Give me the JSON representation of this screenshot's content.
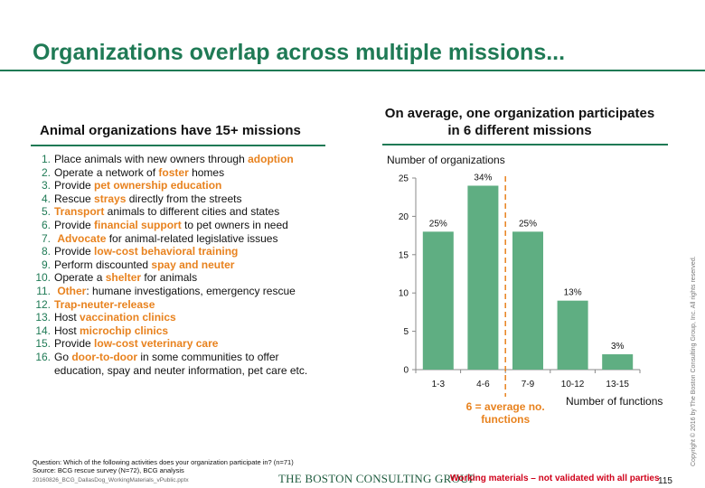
{
  "title": "Organizations overlap across multiple missions...",
  "left_heading": "Animal organizations have 15+ missions",
  "missions": [
    {
      "num": "1.",
      "pre": "Place animals with new owners through ",
      "em": "adoption",
      "post": ""
    },
    {
      "num": "2.",
      "pre": "Operate a network of ",
      "em": "foster",
      "post": " homes"
    },
    {
      "num": "3.",
      "pre": "Provide ",
      "em": "pet ownership education",
      "post": ""
    },
    {
      "num": "4.",
      "pre": "Rescue ",
      "em": "strays",
      "post": " directly from the streets"
    },
    {
      "num": "5.",
      "pre": "",
      "em": "Transport",
      "post": " animals to different cities and states"
    },
    {
      "num": "6.",
      "pre": "Provide ",
      "em": "financial support",
      "post": " to pet owners in need"
    },
    {
      "num": "7.",
      "pre": " ",
      "em": "Advocate",
      "post": " for animal-related legislative issues"
    },
    {
      "num": "8.",
      "pre": "Provide ",
      "em": "low-cost behavioral training",
      "post": ""
    },
    {
      "num": "9.",
      "pre": "Perform discounted ",
      "em": "spay and neuter",
      "post": ""
    },
    {
      "num": "10.",
      "pre": "Operate a ",
      "em": "shelter",
      "post": " for animals"
    },
    {
      "num": "11.",
      "pre": " ",
      "em": "Other",
      "post": ": humane investigations, emergency rescue"
    },
    {
      "num": "12.",
      "pre": "",
      "em": "Trap-neuter-release",
      "post": ""
    },
    {
      "num": "13.",
      "pre": "Host ",
      "em": "vaccination clinics",
      "post": ""
    },
    {
      "num": "14.",
      "pre": "Host ",
      "em": "microchip clinics",
      "post": ""
    },
    {
      "num": "15.",
      "pre": "Provide ",
      "em": "low-cost veterinary care",
      "post": ""
    },
    {
      "num": "16.",
      "pre": "Go ",
      "em": "door-to-door",
      "post": " in some communities to offer\neducation, spay and neuter information, pet care etc."
    }
  ],
  "right_heading": "On average, one organization participates in 6 different missions",
  "chart_data": {
    "type": "bar",
    "ylabel": "Number of organizations",
    "xlabel": "Number of functions",
    "categories": [
      "1-3",
      "4-6",
      "7-9",
      "10-12",
      "13-15"
    ],
    "values": [
      18,
      24,
      18,
      9,
      2
    ],
    "data_labels": [
      "25%",
      "34%",
      "25%",
      "13%",
      "3%"
    ],
    "ylim": [
      0,
      25
    ],
    "yticks": [
      0,
      5,
      10,
      15,
      20,
      25
    ],
    "bar_color": "#5fae82",
    "average_line": {
      "x": 6,
      "label_line1": "6 = average no.",
      "label_line2": "functions",
      "color": "#e8821e"
    }
  },
  "footnote": {
    "question": "Question: Which of the following activities does your organization participate in? (n=71)",
    "source": "Source: BCG rescue survey (N=72), BCG analysis"
  },
  "filename": "20160826_BCG_DallasDog_WorkingMaterials_vPublic.pptx",
  "logo": "THE BOSTON CONSULTING GROUP",
  "working_materials": "Working materials – not validated with all parties",
  "page_number": "115",
  "copyright": "Copyright © 2016 by The Boston Consulting Group, Inc. All rights reserved.",
  "colors": {
    "brand_green": "#1f7a55",
    "accent_orange": "#e8821e",
    "warning_red": "#d0021b"
  }
}
